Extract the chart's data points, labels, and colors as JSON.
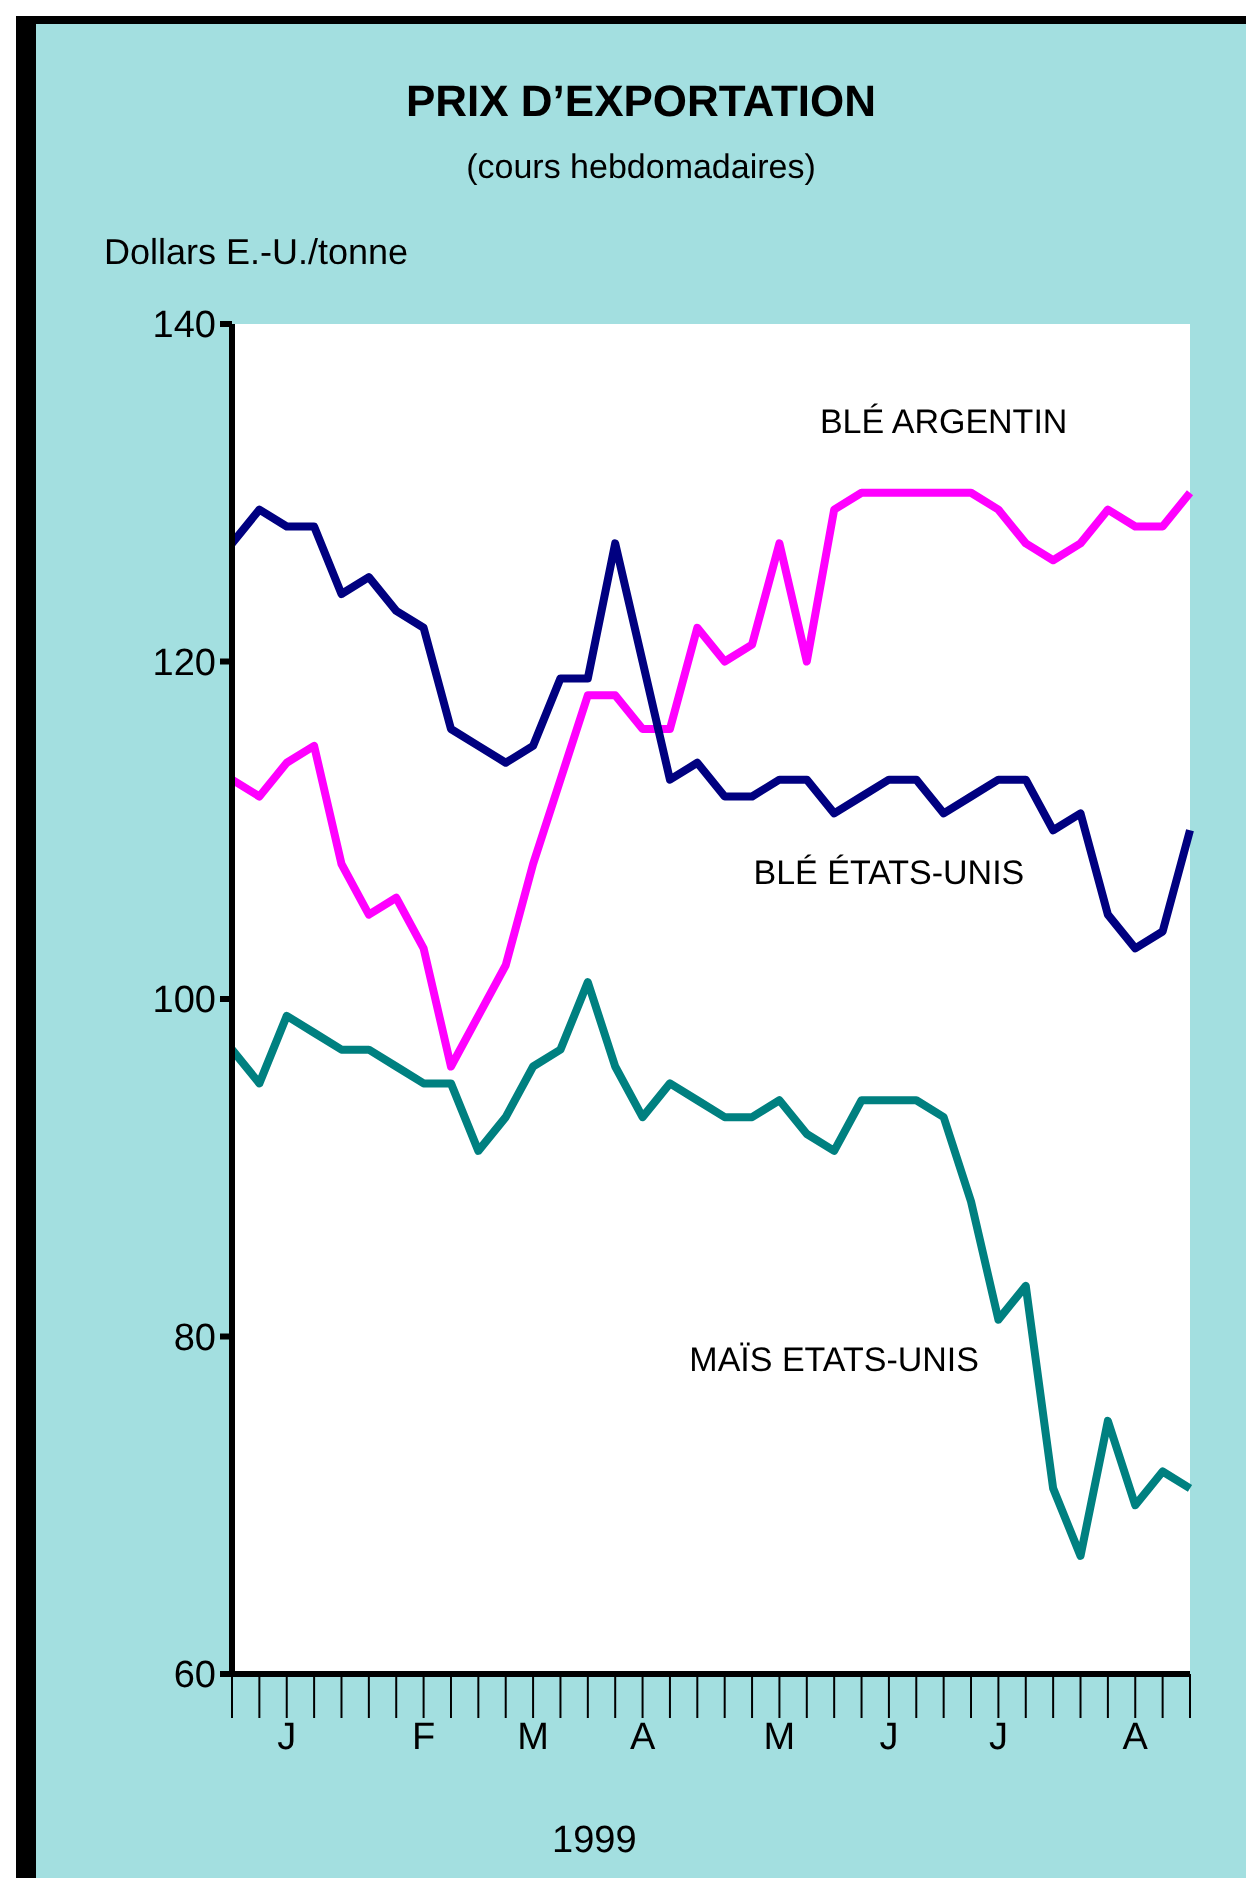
{
  "chart_data": {
    "type": "line",
    "title": "PRIX D’EXPORTATION",
    "subtitle": "(cours hebdomadaires)",
    "ylabel": "Dollars E.-U./tonne",
    "xlabel": "1999",
    "categories": [
      null,
      null,
      "J",
      null,
      null,
      null,
      null,
      "F",
      null,
      null,
      null,
      "M",
      null,
      null,
      null,
      "A",
      null,
      null,
      null,
      null,
      "M",
      null,
      null,
      null,
      "J",
      null,
      null,
      null,
      "J",
      null,
      null,
      null,
      null,
      "A",
      null,
      null
    ],
    "series": [
      {
        "name": "BLÉ ARGENTIN",
        "color": "#ff00ff",
        "values": [
          113,
          112,
          114,
          115,
          108,
          105,
          106,
          103,
          96,
          99,
          102,
          108,
          113,
          118,
          118,
          116,
          116,
          122,
          120,
          121,
          127,
          120,
          129,
          130,
          130,
          130,
          130,
          130,
          129,
          127,
          126,
          127,
          129,
          128,
          128,
          130
        ]
      },
      {
        "name": "BLÉ ÉTATS-UNIS",
        "color": "#000080",
        "values": [
          127,
          129,
          128,
          128,
          124,
          125,
          123,
          122,
          116,
          115,
          114,
          115,
          119,
          119,
          127,
          120,
          113,
          114,
          112,
          112,
          113,
          113,
          111,
          112,
          113,
          113,
          111,
          112,
          113,
          113,
          110,
          111,
          105,
          103,
          104,
          110
        ]
      },
      {
        "name": "MAÏS ETATS-UNIS",
        "color": "#008080",
        "values": [
          97,
          95,
          99,
          98,
          97,
          97,
          96,
          95,
          95,
          91,
          93,
          96,
          97,
          101,
          96,
          93,
          95,
          94,
          93,
          93,
          94,
          92,
          91,
          94,
          94,
          94,
          93,
          88,
          81,
          83,
          71,
          67,
          75,
          70,
          72,
          71
        ]
      }
    ],
    "ylim": [
      60,
      140
    ],
    "yticks": [
      60,
      80,
      100,
      120,
      140
    ],
    "grid": false,
    "marker": "none",
    "line_style": "solid"
  }
}
